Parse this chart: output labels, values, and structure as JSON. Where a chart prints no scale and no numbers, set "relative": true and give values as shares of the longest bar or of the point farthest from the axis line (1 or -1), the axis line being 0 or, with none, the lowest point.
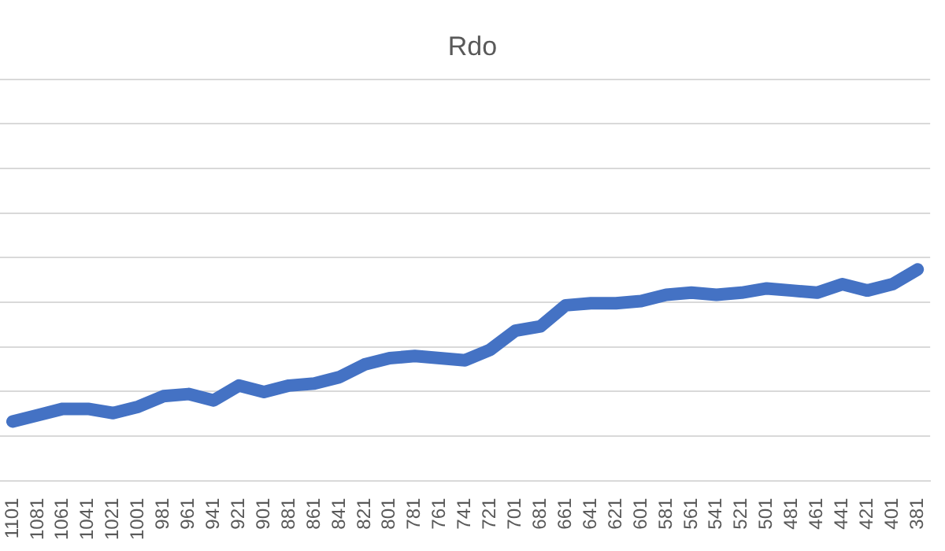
{
  "chart_data": {
    "type": "line",
    "title": "Rdo",
    "relative": true,
    "grid": "y",
    "legend": false,
    "marker": "none",
    "categories": [
      "1101",
      "1081",
      "1061",
      "1041",
      "1021",
      "1001",
      "981",
      "961",
      "941",
      "921",
      "901",
      "881",
      "861",
      "841",
      "821",
      "801",
      "781",
      "761",
      "741",
      "721",
      "701",
      "681",
      "661",
      "641",
      "621",
      "601",
      "581",
      "561",
      "541",
      "521",
      "501",
      "481",
      "461",
      "441",
      "421",
      "401",
      "381"
    ],
    "series": [
      {
        "color": "#4472c4",
        "values": [
          0.28,
          0.31,
          0.34,
          0.34,
          0.32,
          0.35,
          0.4,
          0.41,
          0.38,
          0.45,
          0.42,
          0.45,
          0.46,
          0.49,
          0.55,
          0.58,
          0.59,
          0.58,
          0.57,
          0.62,
          0.71,
          0.73,
          0.83,
          0.84,
          0.84,
          0.85,
          0.88,
          0.89,
          0.88,
          0.89,
          0.91,
          0.9,
          0.89,
          0.93,
          0.9,
          0.93,
          1
        ]
      }
    ]
  }
}
